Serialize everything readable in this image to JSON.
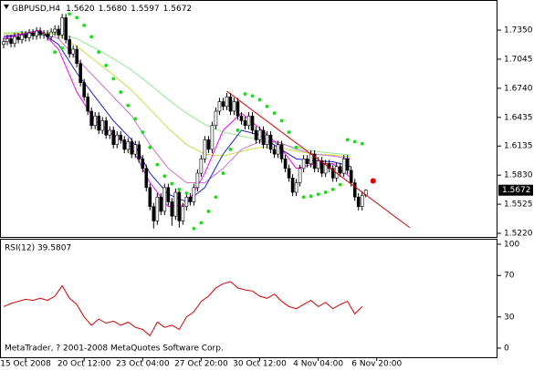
{
  "chart_data": [
    {
      "type": "candlestick",
      "title": "GBPUSD,H4",
      "header_values": [
        "1.5620",
        "1.5680",
        "1.5597",
        "1.5672"
      ],
      "xlim": [
        -1,
        135
      ],
      "ylim": [
        1.5182,
        1.7656
      ],
      "yticks": [
        {
          "value": 1.735,
          "label": "1.7350"
        },
        1.7045,
        {
          "value": 1.674,
          "label": "1.6740"
        },
        1.6435,
        1.6135,
        {
          "value": 1.583,
          "label": "1.5830"
        },
        1.5525,
        {
          "value": 1.522,
          "label": "1.5220"
        }
      ],
      "up_color": "#ffffff",
      "down_color": "#000000",
      "wick_color": "#000000",
      "candles": {
        "open": [
          1.72,
          1.723,
          1.726,
          1.721,
          1.728,
          1.725,
          1.73,
          1.727,
          1.732,
          1.729,
          1.734,
          1.73,
          1.731,
          1.728,
          1.733,
          1.736,
          1.73,
          1.748,
          1.725,
          1.71,
          1.715,
          1.7,
          1.68,
          1.665,
          1.65,
          1.635,
          1.645,
          1.63,
          1.64,
          1.625,
          1.63,
          1.615,
          1.625,
          1.62,
          1.61,
          1.618,
          1.605,
          1.615,
          1.6,
          1.59,
          1.57,
          1.55,
          1.535,
          1.56,
          1.545,
          1.57,
          1.555,
          1.54,
          1.565,
          1.535,
          1.55,
          1.56,
          1.555,
          1.57,
          1.585,
          1.6,
          1.62,
          1.61,
          1.635,
          1.65,
          1.66,
          1.655,
          1.665,
          1.65,
          1.66,
          1.645,
          1.64,
          1.635,
          1.645,
          1.63,
          1.62,
          1.63,
          1.615,
          1.625,
          1.61,
          1.605,
          1.615,
          1.6,
          1.59,
          1.58,
          1.565,
          1.575,
          1.59,
          1.6,
          1.595,
          1.605,
          1.59,
          1.598,
          1.585,
          1.595,
          1.59,
          1.58,
          1.592,
          1.585,
          1.6,
          1.588,
          1.575,
          1.56,
          1.55,
          1.562
        ],
        "high": [
          1.727,
          1.73,
          1.73,
          1.732,
          1.732,
          1.734,
          1.734,
          1.736,
          1.736,
          1.738,
          1.738,
          1.735,
          1.735,
          1.737,
          1.74,
          1.74,
          1.752,
          1.752,
          1.729,
          1.719,
          1.719,
          1.704,
          1.684,
          1.669,
          1.654,
          1.649,
          1.649,
          1.644,
          1.644,
          1.634,
          1.634,
          1.629,
          1.629,
          1.624,
          1.622,
          1.622,
          1.619,
          1.619,
          1.604,
          1.594,
          1.574,
          1.554,
          1.564,
          1.564,
          1.574,
          1.574,
          1.559,
          1.569,
          1.569,
          1.554,
          1.564,
          1.564,
          1.574,
          1.589,
          1.604,
          1.624,
          1.624,
          1.639,
          1.654,
          1.664,
          1.664,
          1.669,
          1.669,
          1.664,
          1.664,
          1.649,
          1.644,
          1.649,
          1.649,
          1.634,
          1.634,
          1.634,
          1.629,
          1.629,
          1.614,
          1.619,
          1.619,
          1.604,
          1.594,
          1.584,
          1.579,
          1.594,
          1.604,
          1.604,
          1.609,
          1.609,
          1.602,
          1.602,
          1.599,
          1.599,
          1.594,
          1.596,
          1.596,
          1.604,
          1.604,
          1.592,
          1.579,
          1.564,
          1.566,
          1.568
        ],
        "low": [
          1.716,
          1.719,
          1.717,
          1.717,
          1.721,
          1.721,
          1.723,
          1.723,
          1.725,
          1.725,
          1.726,
          1.726,
          1.724,
          1.724,
          1.729,
          1.726,
          1.726,
          1.721,
          1.706,
          1.706,
          1.696,
          1.676,
          1.661,
          1.646,
          1.631,
          1.631,
          1.626,
          1.626,
          1.621,
          1.621,
          1.611,
          1.611,
          1.616,
          1.606,
          1.606,
          1.601,
          1.601,
          1.596,
          1.586,
          1.566,
          1.546,
          1.527,
          1.531,
          1.541,
          1.541,
          1.551,
          1.53,
          1.536,
          1.528,
          1.531,
          1.546,
          1.551,
          1.551,
          1.566,
          1.581,
          1.596,
          1.606,
          1.606,
          1.631,
          1.646,
          1.651,
          1.651,
          1.646,
          1.646,
          1.641,
          1.636,
          1.631,
          1.631,
          1.626,
          1.616,
          1.616,
          1.611,
          1.611,
          1.606,
          1.601,
          1.601,
          1.596,
          1.586,
          1.576,
          1.561,
          1.561,
          1.571,
          1.586,
          1.591,
          1.591,
          1.586,
          1.586,
          1.581,
          1.581,
          1.586,
          1.576,
          1.576,
          1.581,
          1.581,
          1.584,
          1.571,
          1.556,
          1.546,
          1.546,
          1.5597
        ],
        "close": [
          1.723,
          1.726,
          1.721,
          1.728,
          1.725,
          1.73,
          1.727,
          1.732,
          1.729,
          1.734,
          1.73,
          1.731,
          1.728,
          1.733,
          1.736,
          1.73,
          1.748,
          1.725,
          1.71,
          1.715,
          1.7,
          1.68,
          1.665,
          1.65,
          1.635,
          1.645,
          1.63,
          1.64,
          1.625,
          1.63,
          1.615,
          1.625,
          1.62,
          1.61,
          1.618,
          1.605,
          1.615,
          1.6,
          1.59,
          1.57,
          1.55,
          1.535,
          1.56,
          1.545,
          1.57,
          1.555,
          1.54,
          1.565,
          1.535,
          1.55,
          1.56,
          1.555,
          1.57,
          1.585,
          1.6,
          1.62,
          1.61,
          1.635,
          1.65,
          1.66,
          1.655,
          1.665,
          1.65,
          1.66,
          1.645,
          1.64,
          1.635,
          1.645,
          1.63,
          1.62,
          1.63,
          1.615,
          1.625,
          1.61,
          1.605,
          1.615,
          1.6,
          1.59,
          1.58,
          1.565,
          1.575,
          1.59,
          1.6,
          1.595,
          1.605,
          1.59,
          1.598,
          1.585,
          1.595,
          1.59,
          1.58,
          1.592,
          1.585,
          1.6,
          1.588,
          1.575,
          1.56,
          1.55,
          1.562,
          1.5672
        ]
      },
      "series": [
        {
          "color": "#90e890",
          "x": [
            0,
            5,
            10,
            15,
            20,
            25,
            30,
            35,
            40,
            45,
            50,
            55,
            60,
            65,
            70,
            75,
            80,
            85,
            90,
            95
          ],
          "values": [
            1.732,
            1.733,
            1.733,
            1.732,
            1.726,
            1.716,
            1.705,
            1.693,
            1.678,
            1.662,
            1.648,
            1.636,
            1.628,
            1.624,
            1.62,
            1.616,
            1.612,
            1.608,
            1.606,
            1.604
          ]
        },
        {
          "color": "#c8e040",
          "x": [
            0,
            5,
            10,
            15,
            20,
            25,
            30,
            35,
            40,
            45,
            50,
            55,
            60,
            65,
            70,
            75,
            80,
            85,
            90,
            95
          ],
          "values": [
            1.731,
            1.732,
            1.733,
            1.73,
            1.718,
            1.703,
            1.688,
            1.672,
            1.652,
            1.632,
            1.615,
            1.605,
            1.603,
            1.608,
            1.612,
            1.612,
            1.608,
            1.605,
            1.604,
            1.602
          ]
        },
        {
          "color": "#d070d0",
          "x": [
            0,
            5,
            10,
            15,
            20,
            25,
            30,
            35,
            40,
            45,
            50,
            55,
            60,
            65,
            70,
            75,
            80,
            85,
            90,
            95
          ],
          "values": [
            1.729,
            1.731,
            1.733,
            1.726,
            1.705,
            1.685,
            1.665,
            1.645,
            1.615,
            1.59,
            1.575,
            1.575,
            1.59,
            1.61,
            1.618,
            1.618,
            1.61,
            1.605,
            1.603,
            1.6
          ]
        },
        {
          "color": "#2020d0",
          "x": [
            0,
            5,
            10,
            15,
            20,
            25,
            30,
            35,
            40,
            45,
            50,
            55,
            60,
            65,
            70,
            75,
            80,
            85,
            90,
            95
          ],
          "values": [
            1.728,
            1.73,
            1.733,
            1.72,
            1.69,
            1.665,
            1.64,
            1.62,
            1.585,
            1.563,
            1.555,
            1.57,
            1.605,
            1.63,
            1.625,
            1.612,
            1.6,
            1.598,
            1.597,
            1.592
          ]
        },
        {
          "color": "#ff00ff",
          "x": [
            0,
            5,
            10,
            15,
            20,
            25,
            30,
            35,
            40,
            45,
            50,
            55,
            60,
            65,
            70,
            75,
            80,
            85,
            90,
            95
          ],
          "values": [
            1.726,
            1.731,
            1.735,
            1.715,
            1.67,
            1.64,
            1.625,
            1.612,
            1.575,
            1.55,
            1.552,
            1.585,
            1.63,
            1.648,
            1.632,
            1.615,
            1.59,
            1.595,
            1.595,
            1.58
          ]
        }
      ],
      "sar": {
        "color": "#00ee00",
        "x": [
          14,
          16,
          18,
          20,
          22,
          24,
          26,
          28,
          30,
          32,
          34,
          36,
          38,
          40,
          42,
          44,
          46,
          48,
          50,
          52,
          54,
          56,
          58,
          60,
          62,
          64,
          66,
          68,
          70,
          72,
          74,
          76,
          78,
          80,
          82,
          84,
          86,
          88,
          90,
          92,
          94,
          96,
          98
        ],
        "values": [
          1.712,
          1.716,
          1.752,
          1.748,
          1.74,
          1.728,
          1.712,
          1.698,
          1.684,
          1.67,
          1.656,
          1.642,
          1.628,
          1.612,
          1.594,
          1.582,
          1.574,
          1.568,
          1.564,
          1.527,
          1.533,
          1.545,
          1.56,
          1.585,
          1.61,
          1.63,
          1.668,
          1.666,
          1.662,
          1.655,
          1.648,
          1.64,
          1.628,
          1.612,
          1.56,
          1.561,
          1.563,
          1.565,
          1.568,
          1.573,
          1.62,
          1.618,
          1.616
        ]
      },
      "trendline": {
        "color": "#e00000",
        "x": [
          61,
          111
        ],
        "values": [
          1.671,
          1.528
        ]
      },
      "alert": {
        "color": "#e00000",
        "x": 101,
        "value": 1.577
      },
      "last_price": {
        "value": 1.5672,
        "label": "1.5672"
      }
    },
    {
      "type": "line",
      "title": "RSI(12) 39.5807",
      "color": "#e00000",
      "xlim": [
        -1,
        135
      ],
      "ylim": [
        -7.9,
        104.4
      ],
      "yticks": [
        0,
        30,
        70,
        100
      ],
      "x": [
        0,
        2,
        4,
        6,
        8,
        10,
        12,
        14,
        16,
        18,
        20,
        22,
        24,
        26,
        28,
        30,
        32,
        34,
        36,
        38,
        40,
        42,
        44,
        46,
        48,
        50,
        52,
        54,
        56,
        58,
        60,
        62,
        64,
        66,
        68,
        70,
        72,
        74,
        76,
        78,
        80,
        82,
        84,
        86,
        88,
        90,
        92,
        94,
        96,
        98
      ],
      "values": [
        40,
        43,
        45,
        47,
        46,
        48,
        46,
        50,
        60,
        48,
        42,
        30,
        22,
        28,
        24,
        26,
        22,
        25,
        20,
        18,
        12,
        25,
        20,
        22,
        18,
        30,
        35,
        45,
        50,
        58,
        62,
        64,
        58,
        56,
        55,
        50,
        48,
        52,
        45,
        40,
        38,
        42,
        46,
        40,
        44,
        38,
        42,
        45,
        33,
        40
      ],
      "xticks": [
        {
          "value": 6,
          "label": "15 Oct 2008"
        },
        {
          "value": 22,
          "label": "20 Oct 12:00"
        },
        {
          "value": 38,
          "label": "23 Oct 04:00"
        },
        {
          "value": 54,
          "label": "27 Oct 20:00"
        },
        {
          "value": 70,
          "label": "30 Oct 12:00"
        },
        {
          "value": 86,
          "label": "4 Nov 04:00"
        },
        {
          "value": 102,
          "label": "6 Nov 20:00"
        }
      ],
      "annotation": "MetaTrader, ? 2001-2008 MetaQuotes Software Corp."
    }
  ]
}
